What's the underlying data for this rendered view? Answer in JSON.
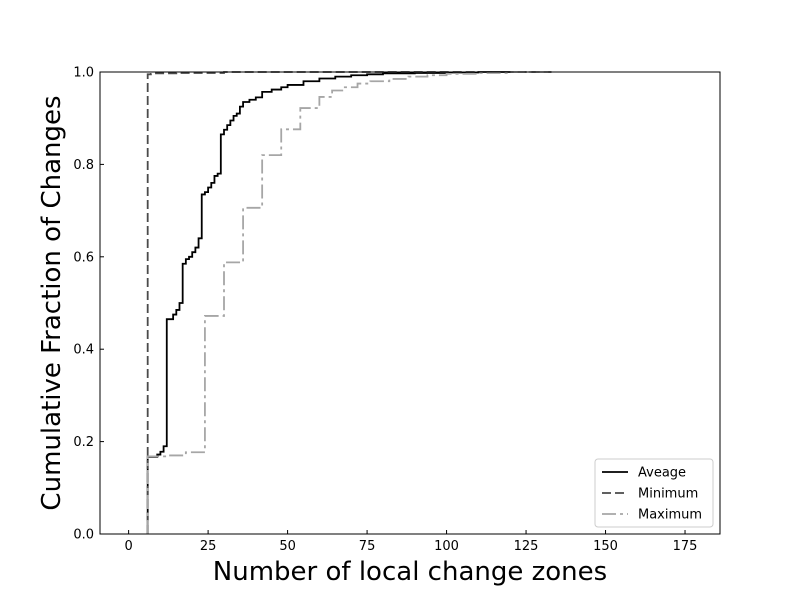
{
  "chart_data": {
    "type": "line",
    "title": "",
    "xlabel": "Number of local change zones",
    "ylabel": "Cumulative Fraction of Changes",
    "xlim": [
      -9,
      186
    ],
    "ylim": [
      0,
      1.0
    ],
    "xticks": [
      0,
      25,
      50,
      75,
      100,
      125,
      150,
      175
    ],
    "yticks": [
      0.0,
      0.2,
      0.4,
      0.6,
      0.8,
      1.0
    ],
    "xtick_labels": [
      "0",
      "25",
      "50",
      "75",
      "100",
      "125",
      "150",
      "175"
    ],
    "ytick_labels": [
      "0.0",
      "0.2",
      "0.4",
      "0.6",
      "0.8",
      "1.0"
    ],
    "grid": false,
    "legend_position": "lower-right",
    "series": [
      {
        "name": "Aveage",
        "style": "solid",
        "color": "#000000",
        "x": [
          6,
          6,
          9,
          10,
          11,
          12,
          14,
          15,
          16,
          17,
          18,
          19,
          20,
          21,
          22,
          23,
          24,
          25,
          26,
          27,
          28,
          29,
          30,
          31,
          32,
          33,
          34,
          35,
          36,
          38,
          40,
          42,
          45,
          48,
          50,
          55,
          60,
          65,
          70,
          75,
          80,
          90,
          100,
          110,
          120
        ],
        "y": [
          0,
          0.167,
          0.172,
          0.178,
          0.19,
          0.465,
          0.475,
          0.485,
          0.5,
          0.585,
          0.595,
          0.6,
          0.61,
          0.62,
          0.64,
          0.735,
          0.74,
          0.75,
          0.76,
          0.775,
          0.78,
          0.865,
          0.875,
          0.885,
          0.895,
          0.905,
          0.91,
          0.925,
          0.935,
          0.94,
          0.945,
          0.957,
          0.962,
          0.967,
          0.972,
          0.98,
          0.986,
          0.99,
          0.993,
          0.995,
          0.997,
          0.998,
          0.999,
          1.0,
          1.0
        ]
      },
      {
        "name": "Minimum",
        "style": "dashed",
        "color": "#4a4a4a",
        "x": [
          6,
          6,
          7,
          8,
          15,
          30,
          133
        ],
        "y": [
          0,
          0.995,
          0.996,
          0.997,
          0.998,
          1.0,
          1.0
        ]
      },
      {
        "name": "Maximum",
        "style": "dashdot",
        "color": "#a6a6a6",
        "x": [
          6,
          6,
          12,
          18,
          24,
          30,
          36,
          42,
          48,
          54,
          60,
          64,
          68,
          72,
          76,
          82,
          88,
          94,
          100,
          110,
          120,
          132
        ],
        "y": [
          0,
          0.168,
          0.17,
          0.177,
          0.472,
          0.588,
          0.706,
          0.82,
          0.876,
          0.922,
          0.946,
          0.96,
          0.967,
          0.975,
          0.98,
          0.985,
          0.99,
          0.993,
          0.996,
          0.998,
          1.0,
          1.0
        ]
      }
    ]
  }
}
